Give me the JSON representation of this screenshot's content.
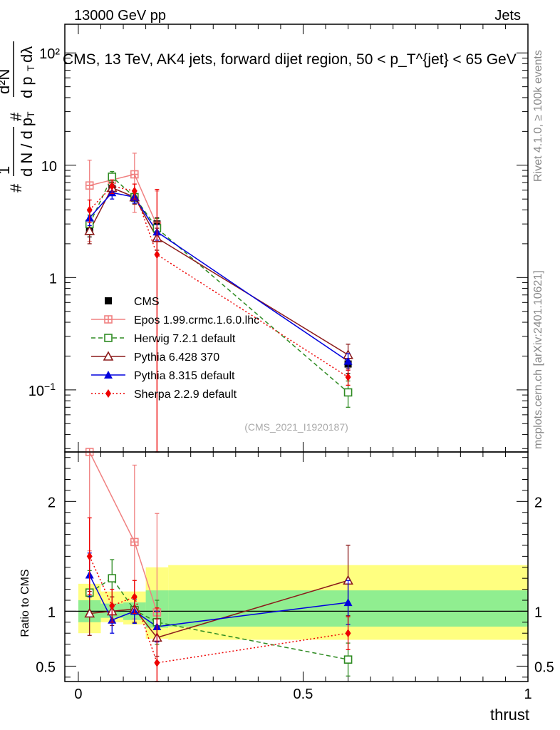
{
  "header": {
    "left": "13000 GeV pp",
    "right": "Jets"
  },
  "side_labels": {
    "rivet": "Rivet 4.1.0, ≥ 100k events",
    "mcplots": "mcplots.cern.ch [arXiv:2401.10621]"
  },
  "chart_data": [
    {
      "type": "line",
      "panel": "main",
      "title": "CMS, 13 TeV, AK4 jets, forward dijet region, 50 < p_T^{jet} < 65 GeV",
      "watermark": "(CMS_2021_I1920187)",
      "ylabel": "1/dN/dp_T  d²N/dp_T dλ",
      "yscale": "log",
      "ylim": [
        0.028,
        180
      ],
      "xlim": [
        -0.03,
        1.0
      ],
      "yticks": [
        {
          "v": 0.1,
          "label": "10−1"
        },
        {
          "v": 1,
          "label": "1"
        },
        {
          "v": 10,
          "label": "10"
        },
        {
          "v": 100,
          "label": "10²"
        }
      ],
      "x": [
        0.025,
        0.075,
        0.125,
        0.175,
        0.6
      ],
      "bin_edges": [
        0,
        0.05,
        0.1,
        0.15,
        0.2,
        1.0
      ],
      "series": [
        {
          "name": "CMS",
          "color": "#000000",
          "marker": "square",
          "dash": "",
          "values": [
            2.65,
            6.2,
            5.1,
            3.0,
            0.17
          ],
          "errors": [
            0.35,
            0.6,
            0.5,
            0.4,
            0.03
          ]
        },
        {
          "name": "Epos 1.99.crmc.1.6.0.lhc",
          "color": "#f08080",
          "marker": "plus-square",
          "dash": "",
          "values": [
            6.6,
            7.4,
            8.3,
            2.9,
            null
          ],
          "errors": [
            4.5,
            1.0,
            4.5,
            3.0,
            null
          ]
        },
        {
          "name": "Herwig 7.2.1 default",
          "color": "#2e8b22",
          "marker": "open-square",
          "dash": "6,4",
          "values": [
            3.0,
            7.9,
            5.2,
            2.75,
            0.095
          ],
          "errors": [
            0.6,
            0.9,
            0.7,
            0.6,
            0.025
          ]
        },
        {
          "name": "Pythia 6.428 370",
          "color": "#8b1a1a",
          "marker": "open-triangle",
          "dash": "",
          "values": [
            2.6,
            6.3,
            5.2,
            2.25,
            0.205
          ],
          "errors": [
            0.6,
            0.8,
            0.7,
            0.5,
            0.05
          ]
        },
        {
          "name": "Pythia 8.315 default",
          "color": "#0000dd",
          "marker": "filled-triangle",
          "dash": "",
          "values": [
            3.4,
            5.7,
            5.2,
            2.55,
            0.18
          ],
          "errors": [
            0.5,
            0.7,
            0.6,
            0.4,
            0.03
          ]
        },
        {
          "name": "Sherpa 2.2.9 default",
          "color": "#ee0000",
          "marker": "filled-diamond",
          "dash": "2,3",
          "values": [
            4.0,
            6.5,
            5.9,
            1.6,
            0.13
          ],
          "errors": [
            0.9,
            0.9,
            0.9,
            4.5,
            0.02
          ]
        }
      ]
    },
    {
      "type": "line",
      "panel": "ratio",
      "ylabel": "Ratio to CMS",
      "ylim": [
        0.36,
        2.45
      ],
      "xlim": [
        -0.03,
        1.0
      ],
      "xlabel": "thrust",
      "xticks": [
        {
          "v": 0,
          "label": "0"
        },
        {
          "v": 0.5,
          "label": "0.5"
        },
        {
          "v": 1,
          "label": "1"
        }
      ],
      "yticks": [
        {
          "v": 0.5,
          "label": "0.5"
        },
        {
          "v": 1,
          "label": "1"
        },
        {
          "v": 2,
          "label": "2"
        }
      ],
      "bands": [
        {
          "name": "syst",
          "color": "#ffff80",
          "bins": [
            [
              0,
              0.05,
              0.8,
              1.25
            ],
            [
              0.05,
              0.1,
              0.9,
              1.18
            ],
            [
              0.1,
              0.15,
              0.88,
              1.18
            ],
            [
              0.15,
              0.2,
              0.75,
              1.4
            ],
            [
              0.2,
              1.0,
              0.74,
              1.42
            ]
          ]
        },
        {
          "name": "stat",
          "color": "#90ee90",
          "bins": [
            [
              0,
              0.05,
              0.9,
              1.1
            ],
            [
              0.05,
              0.1,
              0.94,
              1.07
            ],
            [
              0.1,
              0.15,
              0.92,
              1.08
            ],
            [
              0.15,
              0.2,
              0.85,
              1.19
            ],
            [
              0.2,
              1.0,
              0.86,
              1.19
            ]
          ]
        }
      ],
      "series": [
        {
          "name": "Epos 1.99.crmc.1.6.0.lhc",
          "color": "#f08080",
          "marker": "plus-square",
          "dash": "",
          "values": [
            2.45,
            null,
            1.63,
            0.99,
            null
          ],
          "errors": [
            0.9,
            null,
            0.7,
            0.9,
            null
          ]
        },
        {
          "name": "Herwig 7.2.1 default",
          "color": "#2e8b22",
          "marker": "open-square",
          "dash": "6,4",
          "values": [
            1.17,
            1.3,
            1.01,
            0.9,
            0.56
          ],
          "errors": [
            0.2,
            0.17,
            0.12,
            0.2,
            0.15
          ]
        },
        {
          "name": "Pythia 6.428 370",
          "color": "#8b1a1a",
          "marker": "open-triangle",
          "dash": "",
          "values": [
            0.98,
            1.0,
            1.02,
            0.76,
            1.28
          ],
          "errors": [
            0.2,
            0.13,
            0.12,
            0.17,
            0.32
          ]
        },
        {
          "name": "Pythia 8.315 default",
          "color": "#0000dd",
          "marker": "filled-triangle",
          "dash": "",
          "values": [
            1.33,
            0.92,
            1.0,
            0.86,
            1.08
          ],
          "errors": [
            0.2,
            0.12,
            0.11,
            0.14,
            0.2
          ]
        },
        {
          "name": "Sherpa 2.2.9 default",
          "color": "#ee0000",
          "marker": "filled-diamond",
          "dash": "2,3",
          "values": [
            1.5,
            1.05,
            1.13,
            0.53,
            0.8
          ],
          "errors": [
            0.35,
            0.15,
            0.15,
            0.5,
            0.15
          ]
        }
      ]
    }
  ]
}
